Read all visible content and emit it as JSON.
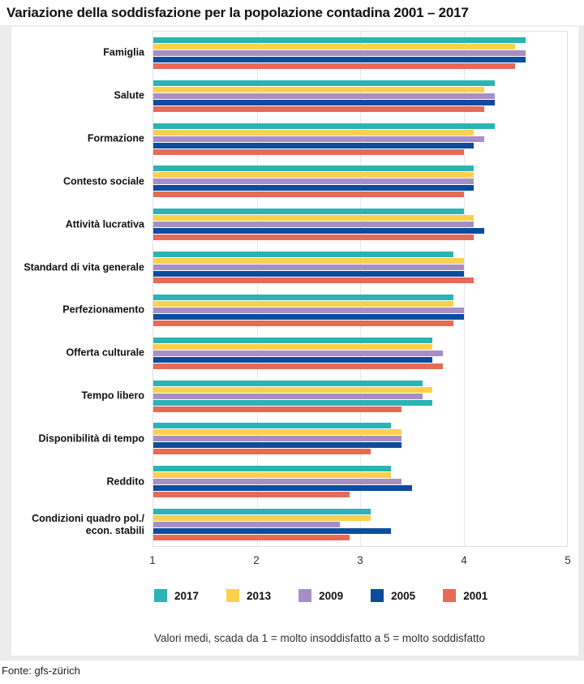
{
  "page": {
    "title": "Variazione della soddisfazione per la popolazione contadina 2001 – 2017",
    "note": "Valori medi, scada da 1 = molto insoddisfatto a 5 = molto soddisfatto",
    "source": "Fonte: gfs-zürich"
  },
  "chart_data": {
    "type": "bar",
    "orientation": "horizontal",
    "title": "Variazione della soddisfazione per la popolazione contadina 2001 – 2017",
    "categories": [
      "Famiglia",
      "Salute",
      "Formazione",
      "Contesto sociale",
      "Attività lucrativa",
      "Standard di vita generale",
      "Perfezionamento",
      "Offerta culturale",
      "Tempo libero",
      "Disponibilità di tempo",
      "Reddito",
      "Condizioni quadro pol./econ. stabili"
    ],
    "category_label_lines": [
      [
        "Famiglia"
      ],
      [
        "Salute"
      ],
      [
        "Formazione"
      ],
      [
        "Contesto sociale"
      ],
      [
        "Attività lucrativa"
      ],
      [
        "Standard di vita generale"
      ],
      [
        "Perfezionamento"
      ],
      [
        "Offerta culturale"
      ],
      [
        "Tempo libero"
      ],
      [
        "Disponibilità di tempo"
      ],
      [
        "Reddito"
      ],
      [
        "Condizioni quadro pol./",
        "econ. stabili"
      ]
    ],
    "series": [
      {
        "name": "2017",
        "color": "#2cb3b3",
        "values": [
          4.6,
          4.3,
          4.3,
          4.1,
          4.0,
          3.9,
          3.9,
          3.7,
          3.6,
          3.3,
          3.3,
          3.1
        ]
      },
      {
        "name": "2013",
        "color": "#fcd04f",
        "values": [
          4.5,
          4.2,
          4.1,
          4.1,
          4.1,
          4.0,
          3.9,
          3.7,
          3.7,
          3.4,
          3.3,
          3.1
        ]
      },
      {
        "name": "2009",
        "color": "#a78fc6",
        "values": [
          4.6,
          4.3,
          4.2,
          4.1,
          4.1,
          4.0,
          4.0,
          3.8,
          3.6,
          3.4,
          3.4,
          2.8
        ]
      },
      {
        "name": "2005",
        "color": "#0c4c9e",
        "values": [
          4.6,
          4.3,
          4.1,
          4.1,
          4.2,
          4.0,
          4.0,
          3.7,
          3.7,
          3.4,
          3.5,
          3.3
        ]
      },
      {
        "name": "2001",
        "color": "#e76a55",
        "values": [
          4.5,
          4.2,
          4.0,
          4.0,
          4.1,
          4.1,
          3.9,
          3.8,
          3.4,
          3.1,
          2.9,
          2.9
        ]
      }
    ],
    "bar_color_overrides": [
      {
        "category_index": 8,
        "series_index": 3,
        "color": "#2cb3b3"
      }
    ],
    "xlim": [
      1,
      5
    ],
    "xticks": [
      "1",
      "2",
      "3",
      "4",
      "5"
    ],
    "grid": true,
    "legend_position": "bottom",
    "legend": [
      "2017",
      "2013",
      "2009",
      "2005",
      "2001"
    ]
  },
  "colors": {
    "frame": "#ececec",
    "plot_border": "#e0e0e0",
    "gridline": "#e6e6e6"
  }
}
